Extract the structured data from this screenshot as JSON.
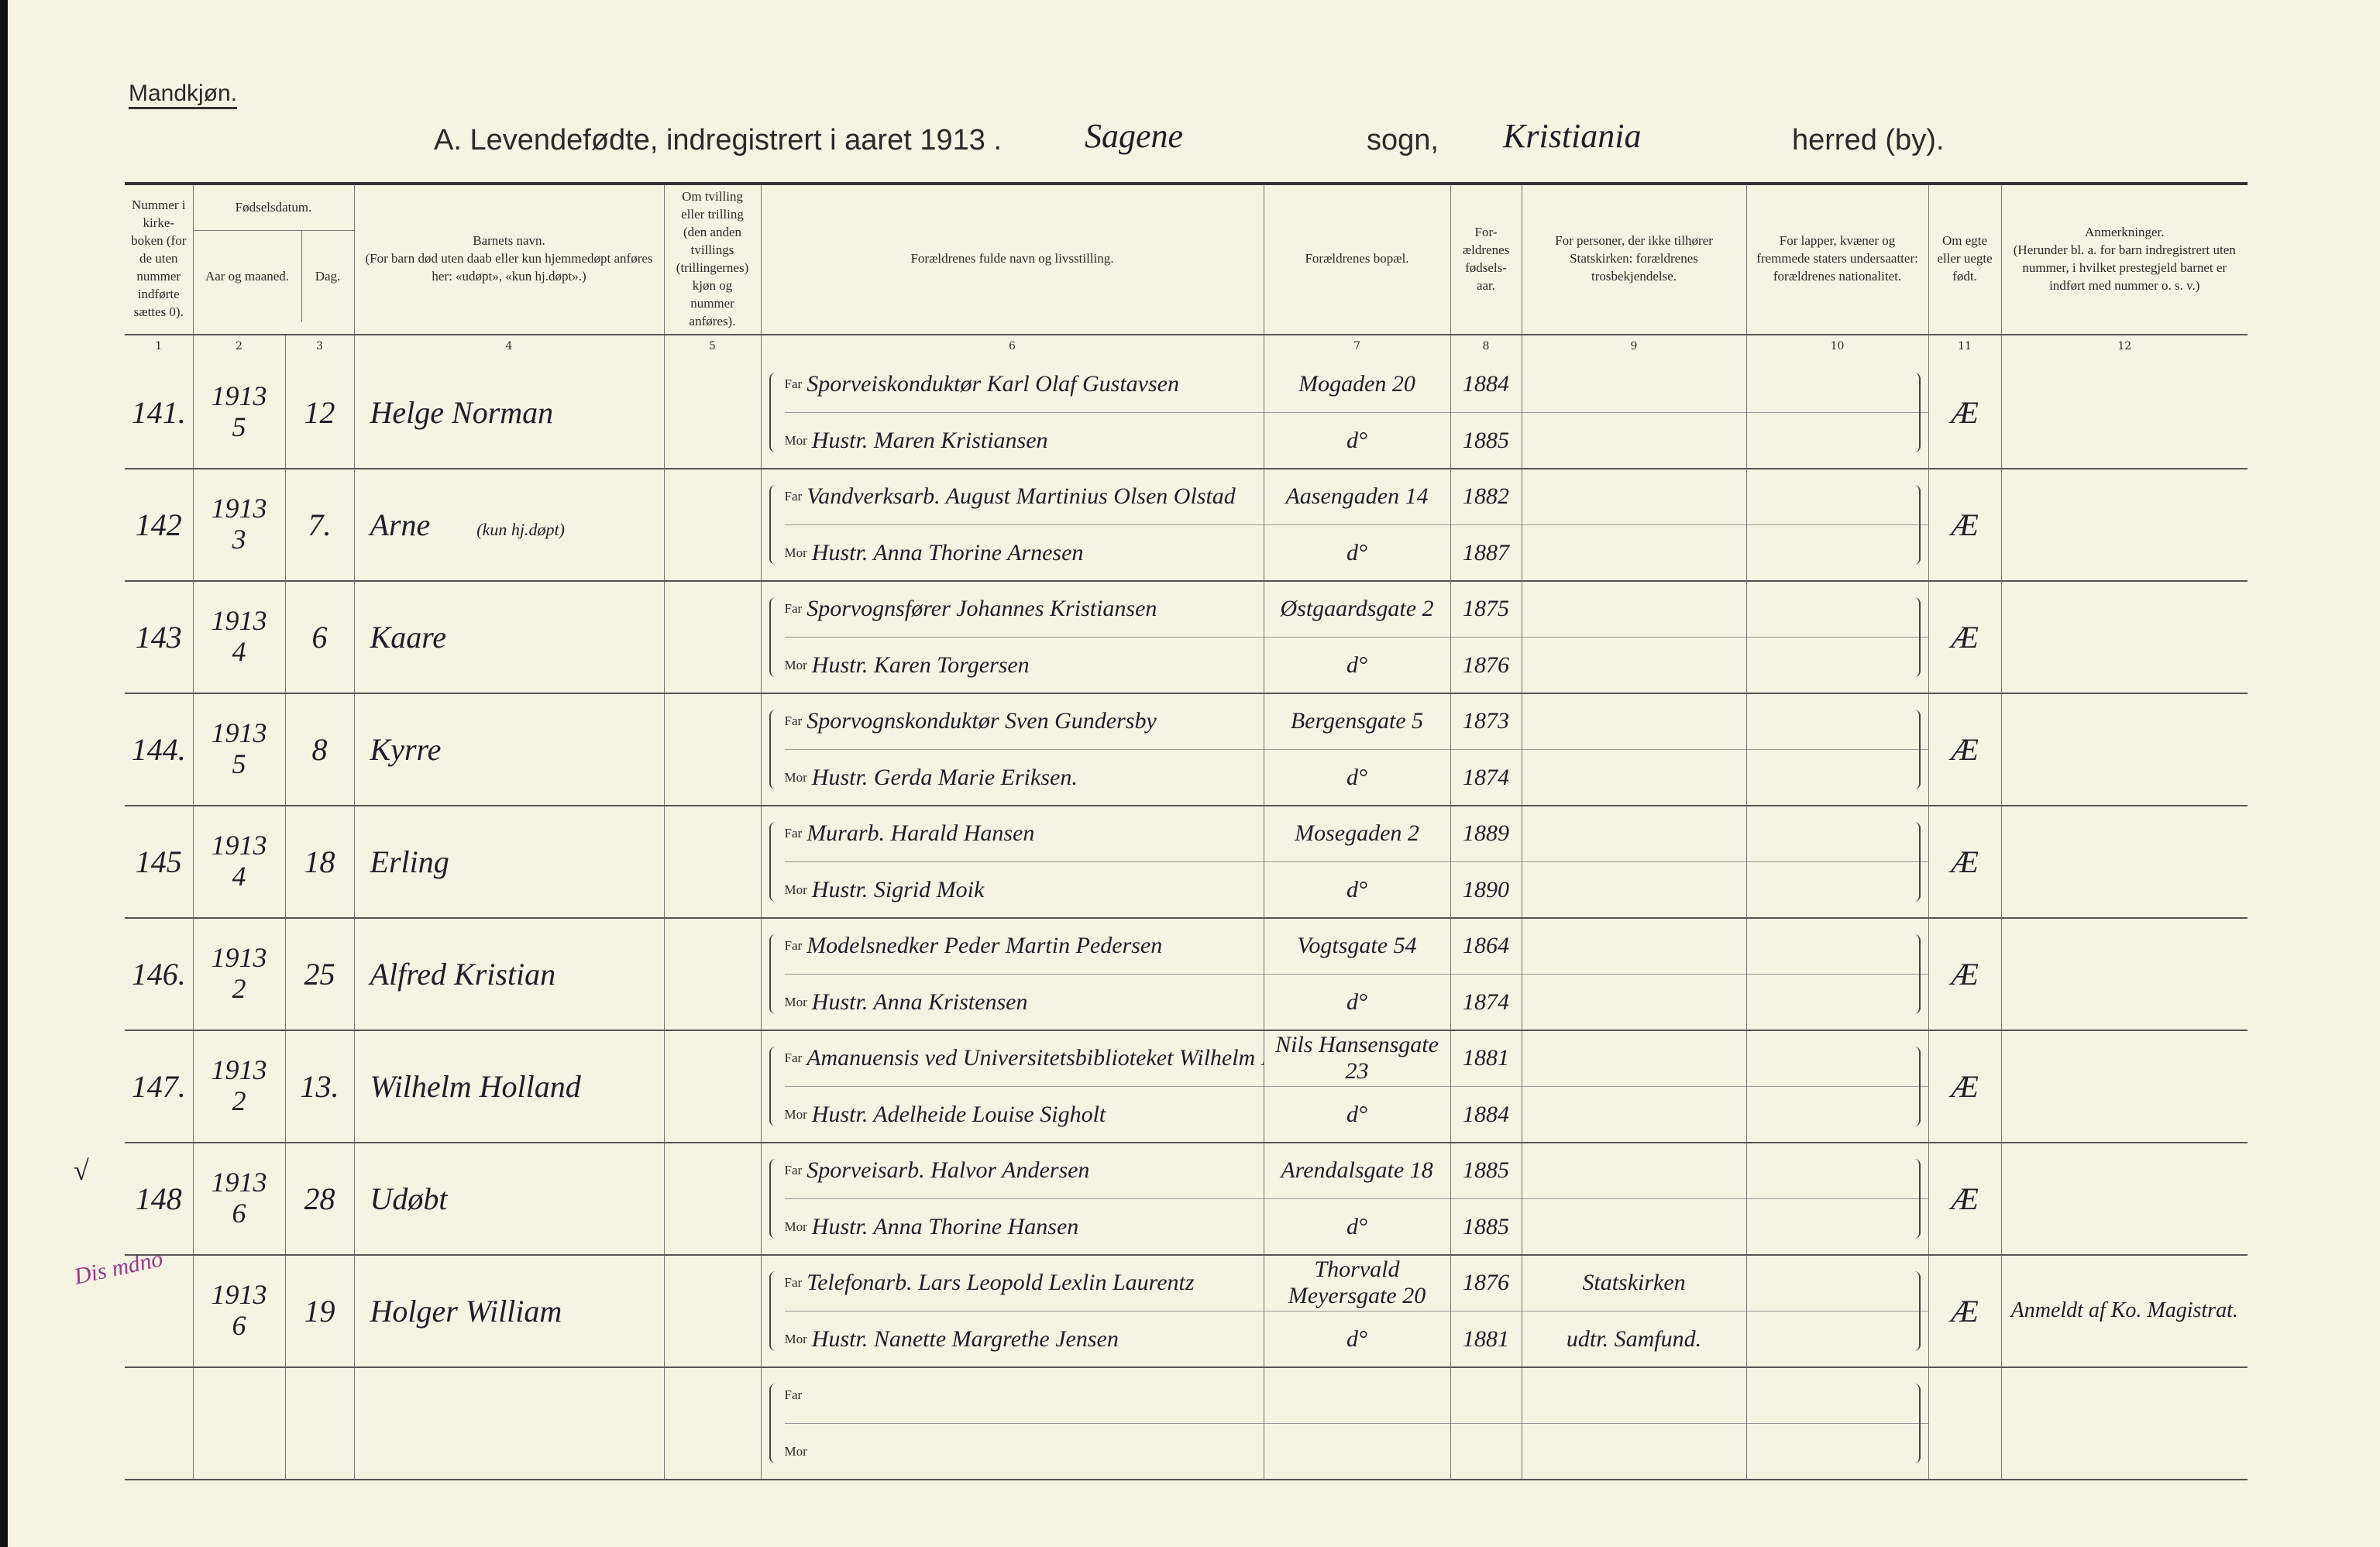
{
  "header": {
    "gender": "Mandkjøn.",
    "title": "A.  Levendefødte, indregistrert i aaret 1913 .",
    "parish_handwritten": "Sagene",
    "sogn_label": "sogn,",
    "city_handwritten": "Kristiania",
    "herred_label": "herred (by)."
  },
  "columns": [
    {
      "n": "1",
      "label": "Nummer i kirke-boken (for de uten nummer indførte sættes 0)."
    },
    {
      "n": "2",
      "label": "Aar og maaned."
    },
    {
      "n": "3",
      "label": "Dag."
    },
    {
      "n": "4",
      "label": "Barnets navn.\n(For barn død uten daab eller kun hjemmedøpt anføres her: «udøpt», «kun hj.døpt».)"
    },
    {
      "n": "5",
      "label": "Om tvilling eller trilling (den anden tvillings (trillingernes) kjøn og nummer anføres)."
    },
    {
      "n": "6",
      "label": "Forældrenes fulde navn og livsstilling."
    },
    {
      "n": "7",
      "label": "Forældrenes bopæl."
    },
    {
      "n": "8",
      "label": "For-ældrenes fødsels-aar."
    },
    {
      "n": "9",
      "label": "For personer, der ikke tilhører Statskirken: forældrenes trosbekjendelse."
    },
    {
      "n": "10",
      "label": "For lapper, kvæner og fremmede staters undersaatter: forældrenes nationalitet."
    },
    {
      "n": "11",
      "label": "Om egte eller uegte født."
    },
    {
      "n": "12",
      "label": "Anmerkninger.\n(Herunder bl. a. for barn indregistrert uten nummer, i hvilket prestegjeld barnet er indført med nummer o. s. v.)"
    }
  ],
  "group_header": "Fødselsdatum.",
  "far_label": "Far",
  "mor_label": "Mor",
  "rows": [
    {
      "num": "141.",
      "year": "1913",
      "month": "5",
      "day": "12",
      "name": "Helge Norman",
      "note": "",
      "far": "Sporveiskonduktør Karl Olaf Gustavsen",
      "mor": "Hustr. Maren Kristiansen",
      "addr_far": "Mogaden 20",
      "addr_mor": "d°",
      "born_far": "1884",
      "born_mor": "1885",
      "faith_far": "",
      "faith_mor": "",
      "legit": "Æ",
      "remarks": ""
    },
    {
      "num": "142",
      "year": "1913",
      "month": "3",
      "day": "7.",
      "name": "Arne",
      "note": "(kun hj.døpt)",
      "far": "Vandverksarb. August Martinius Olsen Olstad",
      "mor": "Hustr. Anna Thorine Arnesen",
      "addr_far": "Aasengaden 14",
      "addr_mor": "d°",
      "born_far": "1882",
      "born_mor": "1887",
      "faith_far": "",
      "faith_mor": "",
      "legit": "Æ",
      "remarks": ""
    },
    {
      "num": "143",
      "year": "1913",
      "month": "4",
      "day": "6",
      "name": "Kaare",
      "note": "",
      "far": "Sporvognsfører Johannes Kristiansen",
      "mor": "Hustr. Karen Torgersen",
      "addr_far": "Østgaardsgate 2",
      "addr_mor": "d°",
      "born_far": "1875",
      "born_mor": "1876",
      "faith_far": "",
      "faith_mor": "",
      "legit": "Æ",
      "remarks": ""
    },
    {
      "num": "144.",
      "year": "1913",
      "month": "5",
      "day": "8",
      "name": "Kyrre",
      "note": "",
      "far": "Sporvognskonduktør Sven Gundersby",
      "mor": "Hustr. Gerda Marie Eriksen.",
      "addr_far": "Bergensgate 5",
      "addr_mor": "d°",
      "born_far": "1873",
      "born_mor": "1874",
      "faith_far": "",
      "faith_mor": "",
      "legit": "Æ",
      "remarks": ""
    },
    {
      "num": "145",
      "year": "1913",
      "month": "4",
      "day": "18",
      "name": "Erling",
      "note": "",
      "far": "Murarb. Harald Hansen",
      "mor": "Hustr. Sigrid Moik",
      "addr_far": "Mosegaden 2",
      "addr_mor": "d°",
      "born_far": "1889",
      "born_mor": "1890",
      "faith_far": "",
      "faith_mor": "",
      "legit": "Æ",
      "remarks": ""
    },
    {
      "num": "146.",
      "year": "1913",
      "month": "2",
      "day": "25",
      "name": "Alfred Kristian",
      "note": "",
      "far": "Modelsnedker Peder Martin Pedersen",
      "mor": "Hustr. Anna Kristensen",
      "addr_far": "Vogtsgate 54",
      "addr_mor": "d°",
      "born_far": "1864",
      "born_mor": "1874",
      "faith_far": "",
      "faith_mor": "",
      "legit": "Æ",
      "remarks": ""
    },
    {
      "num": "147.",
      "year": "1913",
      "month": "2",
      "day": "13.",
      "name": "Wilhelm Holland",
      "note": "",
      "far": "Amanuensis ved Universitetsbiblioteket Wilhelm Frans Sommerfeldt",
      "mor": "Hustr. Adelheide Louise Sigholt",
      "addr_far": "Nils Hansensgate 23",
      "addr_mor": "d°",
      "born_far": "1881",
      "born_mor": "1884",
      "faith_far": "",
      "faith_mor": "",
      "legit": "Æ",
      "remarks": ""
    },
    {
      "num": "148",
      "year": "1913",
      "month": "6",
      "day": "28",
      "name": "Udøbt",
      "note": "",
      "far": "Sporveisarb. Halvor Andersen",
      "mor": "Hustr. Anna Thorine Hansen",
      "addr_far": "Arendalsgate 18",
      "addr_mor": "d°",
      "born_far": "1885",
      "born_mor": "1885",
      "faith_far": "",
      "faith_mor": "",
      "legit": "Æ",
      "remarks": ""
    },
    {
      "num": "",
      "year": "1913",
      "month": "6",
      "day": "19",
      "name": "Holger William",
      "note": "",
      "far": "Telefonarb. Lars Leopold Lexlin Laurentz",
      "mor": "Hustr. Nanette Margrethe Jensen",
      "addr_far": "Thorvald Meyersgate 20",
      "addr_mor": "d°",
      "born_far": "1876",
      "born_mor": "1881",
      "faith_far": "Statskirken",
      "faith_mor": "udtr. Samfund.",
      "legit": "Æ",
      "remarks": "Anmeldt af Ko. Magistrat."
    },
    {
      "num": "",
      "year": "",
      "month": "",
      "day": "",
      "name": "",
      "note": "",
      "far": "",
      "mor": "",
      "addr_far": "",
      "addr_mor": "",
      "born_far": "",
      "born_mor": "",
      "faith_far": "",
      "faith_mor": "",
      "legit": "",
      "remarks": ""
    }
  ],
  "margin": {
    "check": "√",
    "note": "Dis mdno"
  }
}
